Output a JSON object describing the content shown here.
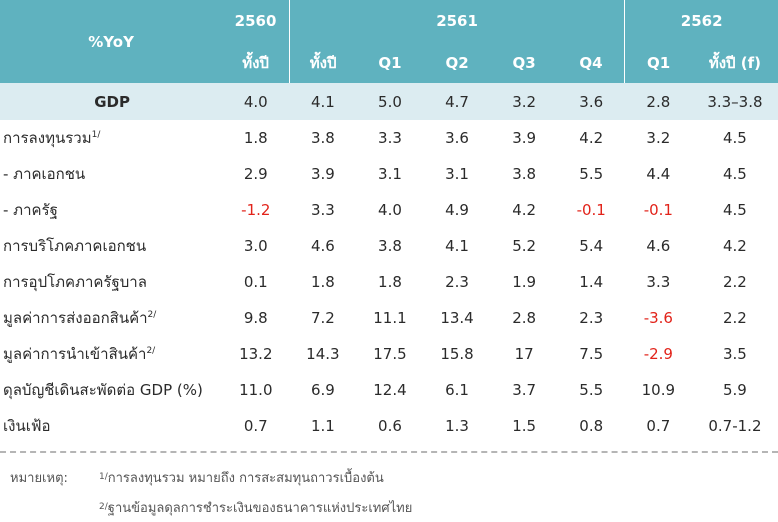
{
  "table": {
    "corner_label": "%YoY",
    "years": [
      "2560",
      "2561",
      "2562"
    ],
    "subheaders": [
      "ทั้งปี",
      "ทั้งปี",
      "Q1",
      "Q2",
      "Q3",
      "Q4",
      "Q1",
      "ทั้งปี (f)"
    ],
    "gdp": {
      "label": "GDP",
      "values": [
        "4.0",
        "4.1",
        "5.0",
        "4.7",
        "3.2",
        "3.6",
        "2.8",
        "3.3–3.8"
      ]
    },
    "rows": [
      {
        "label": "การลงทุนรวม",
        "sup": "1/",
        "values": [
          "1.8",
          "3.8",
          "3.3",
          "3.6",
          "3.9",
          "4.2",
          "3.2",
          "4.5"
        ]
      },
      {
        "label": "- ภาคเอกชน",
        "sup": "",
        "values": [
          "2.9",
          "3.9",
          "3.1",
          "3.1",
          "3.8",
          "5.5",
          "4.4",
          "4.5"
        ]
      },
      {
        "label": "- ภาครัฐ",
        "sup": "",
        "values": [
          "-1.2",
          "3.3",
          "4.0",
          "4.9",
          "4.2",
          "-0.1",
          "-0.1",
          "4.5"
        ]
      },
      {
        "label": "การบริโภคภาคเอกชน",
        "sup": "",
        "values": [
          "3.0",
          "4.6",
          "3.8",
          "4.1",
          "5.2",
          "5.4",
          "4.6",
          "4.2"
        ]
      },
      {
        "label": "การอุปโภคภาครัฐบาล",
        "sup": "",
        "values": [
          "0.1",
          "1.8",
          "1.8",
          "2.3",
          "1.9",
          "1.4",
          "3.3",
          "2.2"
        ]
      },
      {
        "label": "มูลค่าการส่งออกสินค้า",
        "sup": "2/",
        "values": [
          "9.8",
          "7.2",
          "11.1",
          "13.4",
          "2.8",
          "2.3",
          "-3.6",
          "2.2"
        ]
      },
      {
        "label": "มูลค่าการนำเข้าสินค้า",
        "sup": "2/",
        "values": [
          "13.2",
          "14.3",
          "17.5",
          "15.8",
          "17",
          "7.5",
          "-2.9",
          "3.5"
        ]
      },
      {
        "label": "ดุลบัญชีเดินสะพัดต่อ GDP (%)",
        "sup": "",
        "values": [
          "11.0",
          "6.9",
          "12.4",
          "6.1",
          "3.7",
          "5.5",
          "10.9",
          "5.9"
        ]
      },
      {
        "label": "เงินเฟ้อ",
        "sup": "",
        "values": [
          "0.7",
          "1.1",
          "0.6",
          "1.3",
          "1.5",
          "0.8",
          "0.7",
          "0.7-1.2"
        ]
      }
    ]
  },
  "notes": {
    "label": "หมายเหตุ:",
    "items": [
      {
        "sup": "1/",
        "text": "การลงทุนรวม หมายถึง การสะสมทุนถาวรเบื้องต้น"
      },
      {
        "sup": "2/",
        "text": "ฐานข้อมูลดุลการชำระเงินของธนาคารแห่งประเทศไทย"
      }
    ]
  },
  "colors": {
    "header_bg": "#5fb2bf",
    "gdp_row_bg": "#dcecf1",
    "negative": "#e2231a"
  }
}
